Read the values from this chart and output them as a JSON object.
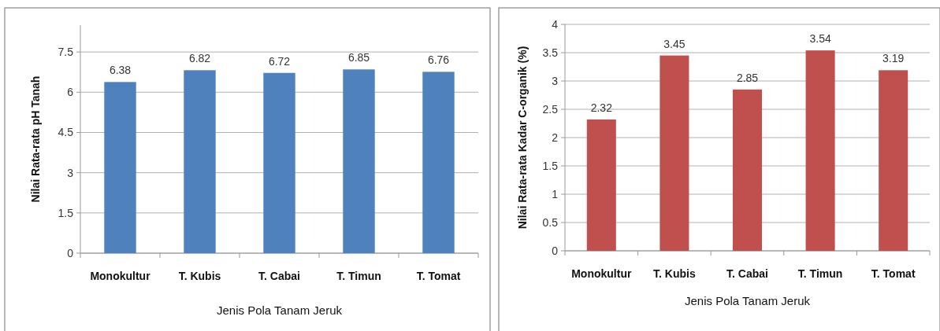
{
  "chart_data": [
    {
      "type": "bar",
      "xlabel": "Jenis Pola Tanam Jeruk",
      "ylabel": "Nilai Rata-rata pH Tanah",
      "categories": [
        "Monokultur",
        "T. Kubis",
        "T. Cabai",
        "T. Timun",
        "T. Tomat"
      ],
      "values": [
        6.38,
        6.82,
        6.72,
        6.85,
        6.76
      ],
      "color": "#4f81bd",
      "ylim": [
        0,
        8.5
      ],
      "yticks": [
        0,
        1.5,
        3,
        4.5,
        6,
        7.5
      ],
      "grid": "y",
      "data_labels": true
    },
    {
      "type": "bar",
      "xlabel": "Jenis Pola Tanam Jeruk",
      "ylabel": "Nilai Rata-rata Kadar C-organik (%)",
      "categories": [
        "Monokultur",
        "T. Kubis",
        "T. Cabai",
        "T. Timun",
        "T. Tomat"
      ],
      "values": [
        2.32,
        3.45,
        2.85,
        3.54,
        3.19
      ],
      "color": "#c0504d",
      "ylim": [
        0,
        4
      ],
      "yticks": [
        0,
        0.5,
        1,
        1.5,
        2,
        2.5,
        3,
        3.5,
        4
      ],
      "grid": "y",
      "data_labels": true
    }
  ]
}
